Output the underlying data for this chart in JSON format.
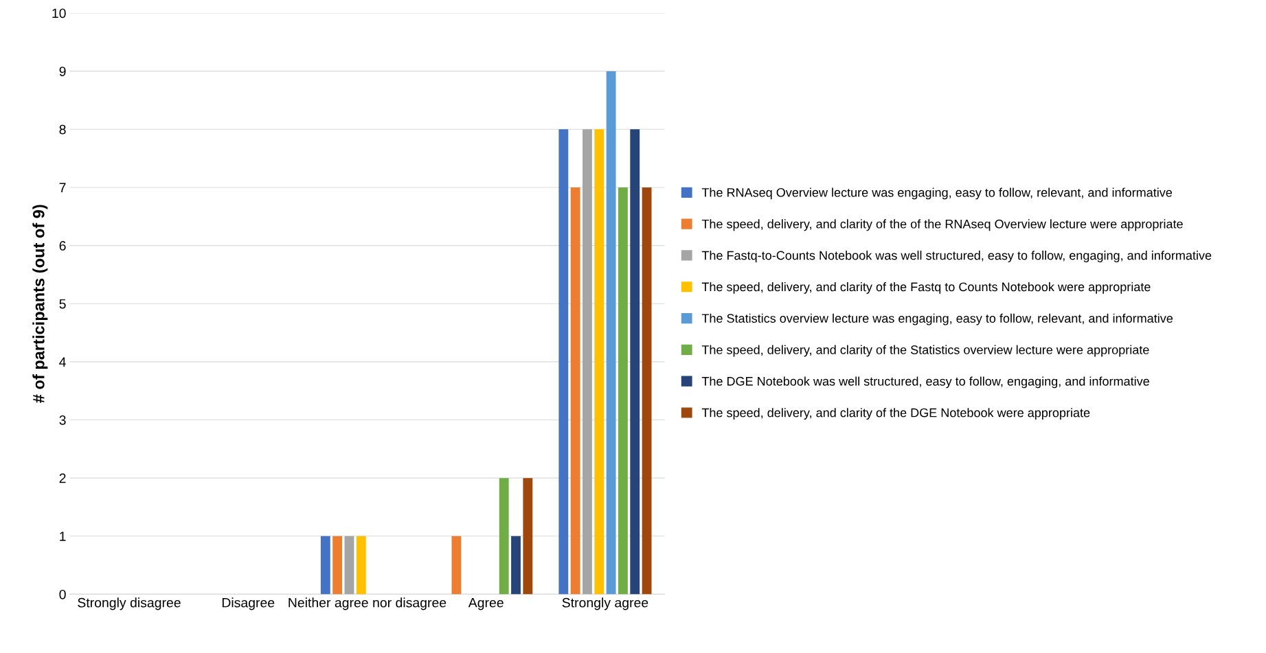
{
  "chart_data": {
    "type": "bar",
    "ylabel": "# of participants (out of 9)",
    "categories": [
      "Strongly disagree",
      "Disagree",
      "Neither agree nor disagree",
      "Agree",
      "Strongly agree"
    ],
    "series": [
      {
        "name": "The RNAseq Overview lecture was engaging, easy to follow, relevant, and informative",
        "color": "#4472c4",
        "values": [
          0,
          0,
          1,
          0,
          8
        ]
      },
      {
        "name": "The speed, delivery, and clarity of the of the RNAseq Overview lecture were appropriate",
        "color": "#ed7d31",
        "values": [
          0,
          0,
          1,
          1,
          7
        ]
      },
      {
        "name": "The Fastq-to-Counts Notebook was well structured, easy to follow, engaging, and informative",
        "color": "#a5a5a5",
        "values": [
          0,
          0,
          1,
          0,
          8
        ]
      },
      {
        "name": "The speed, delivery, and clarity of the Fastq to Counts Notebook were appropriate",
        "color": "#ffc000",
        "values": [
          0,
          0,
          1,
          0,
          8
        ]
      },
      {
        "name": "The Statistics overview lecture was engaging, easy to follow, relevant, and informative",
        "color": "#5b9bd5",
        "values": [
          0,
          0,
          0,
          0,
          9
        ]
      },
      {
        "name": "The speed, delivery, and clarity of the Statistics overview lecture were appropriate",
        "color": "#70ad47",
        "values": [
          0,
          0,
          0,
          2,
          7
        ]
      },
      {
        "name": "The DGE Notebook was well structured, easy to follow, engaging, and informative",
        "color": "#264478",
        "values": [
          0,
          0,
          0,
          1,
          8
        ]
      },
      {
        "name": "The speed, delivery, and clarity of the DGE Notebook were appropriate",
        "color": "#9e480e",
        "values": [
          0,
          0,
          0,
          2,
          7
        ]
      }
    ],
    "ylim": [
      0,
      10
    ],
    "yticks": [
      0,
      1,
      2,
      3,
      4,
      5,
      6,
      7,
      8,
      9,
      10
    ],
    "grid": "y",
    "legend": "right"
  }
}
